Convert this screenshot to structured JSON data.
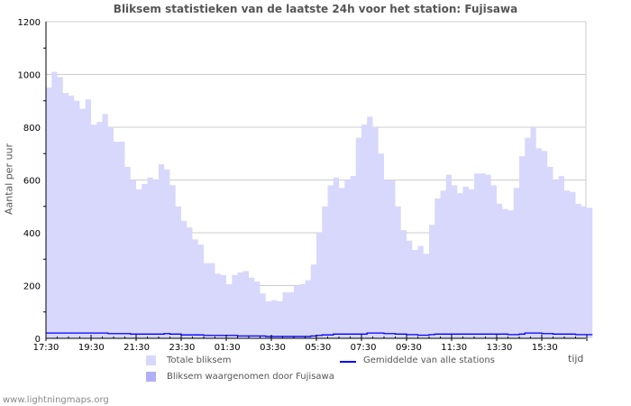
{
  "chart_data": {
    "type": "area",
    "title": "Bliksem statistieken van de laatste 24h voor het station: Fujisawa",
    "xlabel": "tijd",
    "ylabel": "Aantal per uur",
    "ylim": [
      0,
      1200
    ],
    "yticks": [
      "0",
      "200",
      "400",
      "600",
      "800",
      "1000",
      "1200"
    ],
    "xticks": [
      "17:30",
      "19:30",
      "21:30",
      "23:30",
      "01:30",
      "03:30",
      "05:30",
      "07:30",
      "09:30",
      "11:30",
      "13:30",
      "15:30"
    ],
    "interval_minutes": 15,
    "grid": true,
    "colors": {
      "total": "#d8d8fc",
      "station": "#b0b0f8",
      "average": "#0000ff",
      "grid": "#cccccc"
    },
    "series": [
      {
        "name": "Totale bliksem",
        "type": "area",
        "values": [
          950,
          1010,
          990,
          930,
          920,
          900,
          870,
          905,
          810,
          820,
          850,
          800,
          745,
          745,
          650,
          600,
          565,
          585,
          610,
          600,
          660,
          640,
          580,
          500,
          445,
          420,
          375,
          355,
          285,
          285,
          245,
          240,
          205,
          240,
          250,
          255,
          230,
          215,
          170,
          140,
          145,
          140,
          175,
          175,
          200,
          205,
          220,
          280,
          400,
          500,
          580,
          610,
          570,
          600,
          615,
          760,
          810,
          840,
          800,
          700,
          600,
          600,
          500,
          410,
          370,
          335,
          350,
          320,
          430,
          530,
          560,
          620,
          580,
          550,
          575,
          565,
          625,
          625,
          620,
          580,
          510,
          490,
          485,
          570,
          690,
          760,
          800,
          720,
          710,
          650,
          600,
          615,
          560,
          555,
          510,
          500,
          495
        ]
      },
      {
        "name": "Bliksem waargenomen door Fujisawa",
        "type": "area",
        "values": []
      },
      {
        "name": "Gemiddelde van alle stations",
        "type": "line",
        "values": [
          20,
          20,
          20,
          20,
          20,
          20,
          20,
          20,
          20,
          20,
          20,
          18,
          18,
          18,
          18,
          16,
          16,
          16,
          16,
          16,
          16,
          18,
          16,
          16,
          13,
          13,
          13,
          13,
          11,
          11,
          11,
          11,
          11,
          11,
          9,
          9,
          9,
          9,
          9,
          7,
          7,
          7,
          7,
          7,
          7,
          7,
          7,
          9,
          11,
          13,
          13,
          16,
          16,
          16,
          16,
          16,
          16,
          20,
          20,
          20,
          18,
          18,
          16,
          16,
          14,
          14,
          12,
          12,
          14,
          16,
          16,
          16,
          16,
          16,
          16,
          16,
          16,
          16,
          16,
          16,
          16,
          16,
          14,
          14,
          16,
          20,
          20,
          20,
          18,
          18,
          16,
          16,
          16,
          16,
          14,
          14,
          14
        ]
      }
    ]
  },
  "legend": {
    "total": "Totale bliksem",
    "station": "Bliksem waargenomen door Fujisawa",
    "average": "Gemiddelde van alle stations"
  },
  "footer": "www.lightningmaps.org"
}
